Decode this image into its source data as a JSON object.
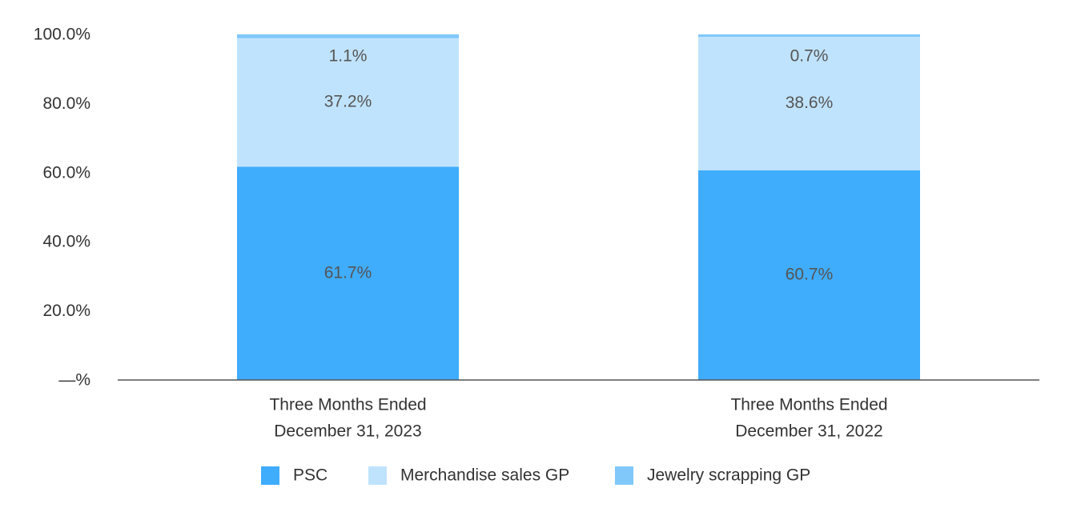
{
  "chart_data": {
    "type": "stacked_bar",
    "categories": [
      [
        "Three Months Ended",
        "December 31, 2023"
      ],
      [
        "Three Months Ended",
        "December 31, 2022"
      ]
    ],
    "series": [
      {
        "name": "PSC",
        "color": "#40acfc",
        "values": [
          61.7,
          60.7
        ],
        "value_labels": [
          "61.7%",
          "60.7%"
        ]
      },
      {
        "name": "Merchandise sales GP",
        "color": "#c0e3fd",
        "values": [
          37.2,
          38.6
        ],
        "value_labels": [
          "37.2%",
          "38.6%"
        ]
      },
      {
        "name": "Jewelry scrapping GP",
        "color": "#80c8fa",
        "values": [
          1.1,
          0.7
        ],
        "value_labels": [
          "1.1%",
          "0.7%"
        ]
      }
    ],
    "ylim": [
      0,
      100
    ],
    "yticks": [
      {
        "value": 0,
        "label": "—%"
      },
      {
        "value": 20,
        "label": "20.0%"
      },
      {
        "value": 40,
        "label": "40.0%"
      },
      {
        "value": 60,
        "label": "60.0%"
      },
      {
        "value": 80,
        "label": "80.0%"
      },
      {
        "value": 100,
        "label": "100.0%"
      }
    ],
    "legend": "bottom"
  }
}
